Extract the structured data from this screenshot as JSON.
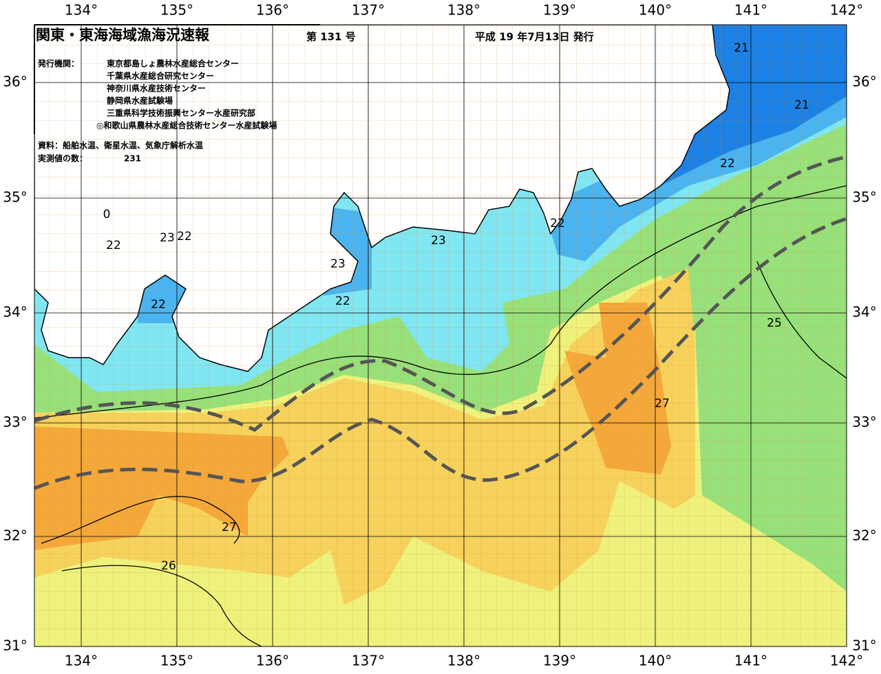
{
  "header": {
    "title": "関東・東海海域漁海況速報",
    "issue": "第 131 号",
    "date": "平成 19 年7月13日 発行"
  },
  "info": {
    "issuer_label": "発行機関：",
    "issuers": [
      "東京都島しょ農林水産総合センター",
      "千葉県水産総合研究センター",
      "神奈川県水産技術センター",
      "静岡県水産試験場",
      "三重県科学技術振興センター水産研究部",
      "◎和歌山県農林水産総合技術センター水産試験場"
    ],
    "source": "資料：船舶水温、衛星水温、気象庁解析水温",
    "count_label": "実測値の数：",
    "count": 231
  },
  "map": {
    "longitude_labels": [
      "134°",
      "135°",
      "136°",
      "137°",
      "138°",
      "139°",
      "140°",
      "141°",
      "142°"
    ],
    "latitude_labels": [
      "36°",
      "35°",
      "34°",
      "33°",
      "32°",
      "31°"
    ],
    "contour_labels": [
      "21",
      "21",
      "22",
      "22",
      "0",
      "22",
      "23",
      "22",
      "23",
      "23",
      "22",
      "22",
      "25",
      "27",
      "27",
      "26"
    ]
  }
}
